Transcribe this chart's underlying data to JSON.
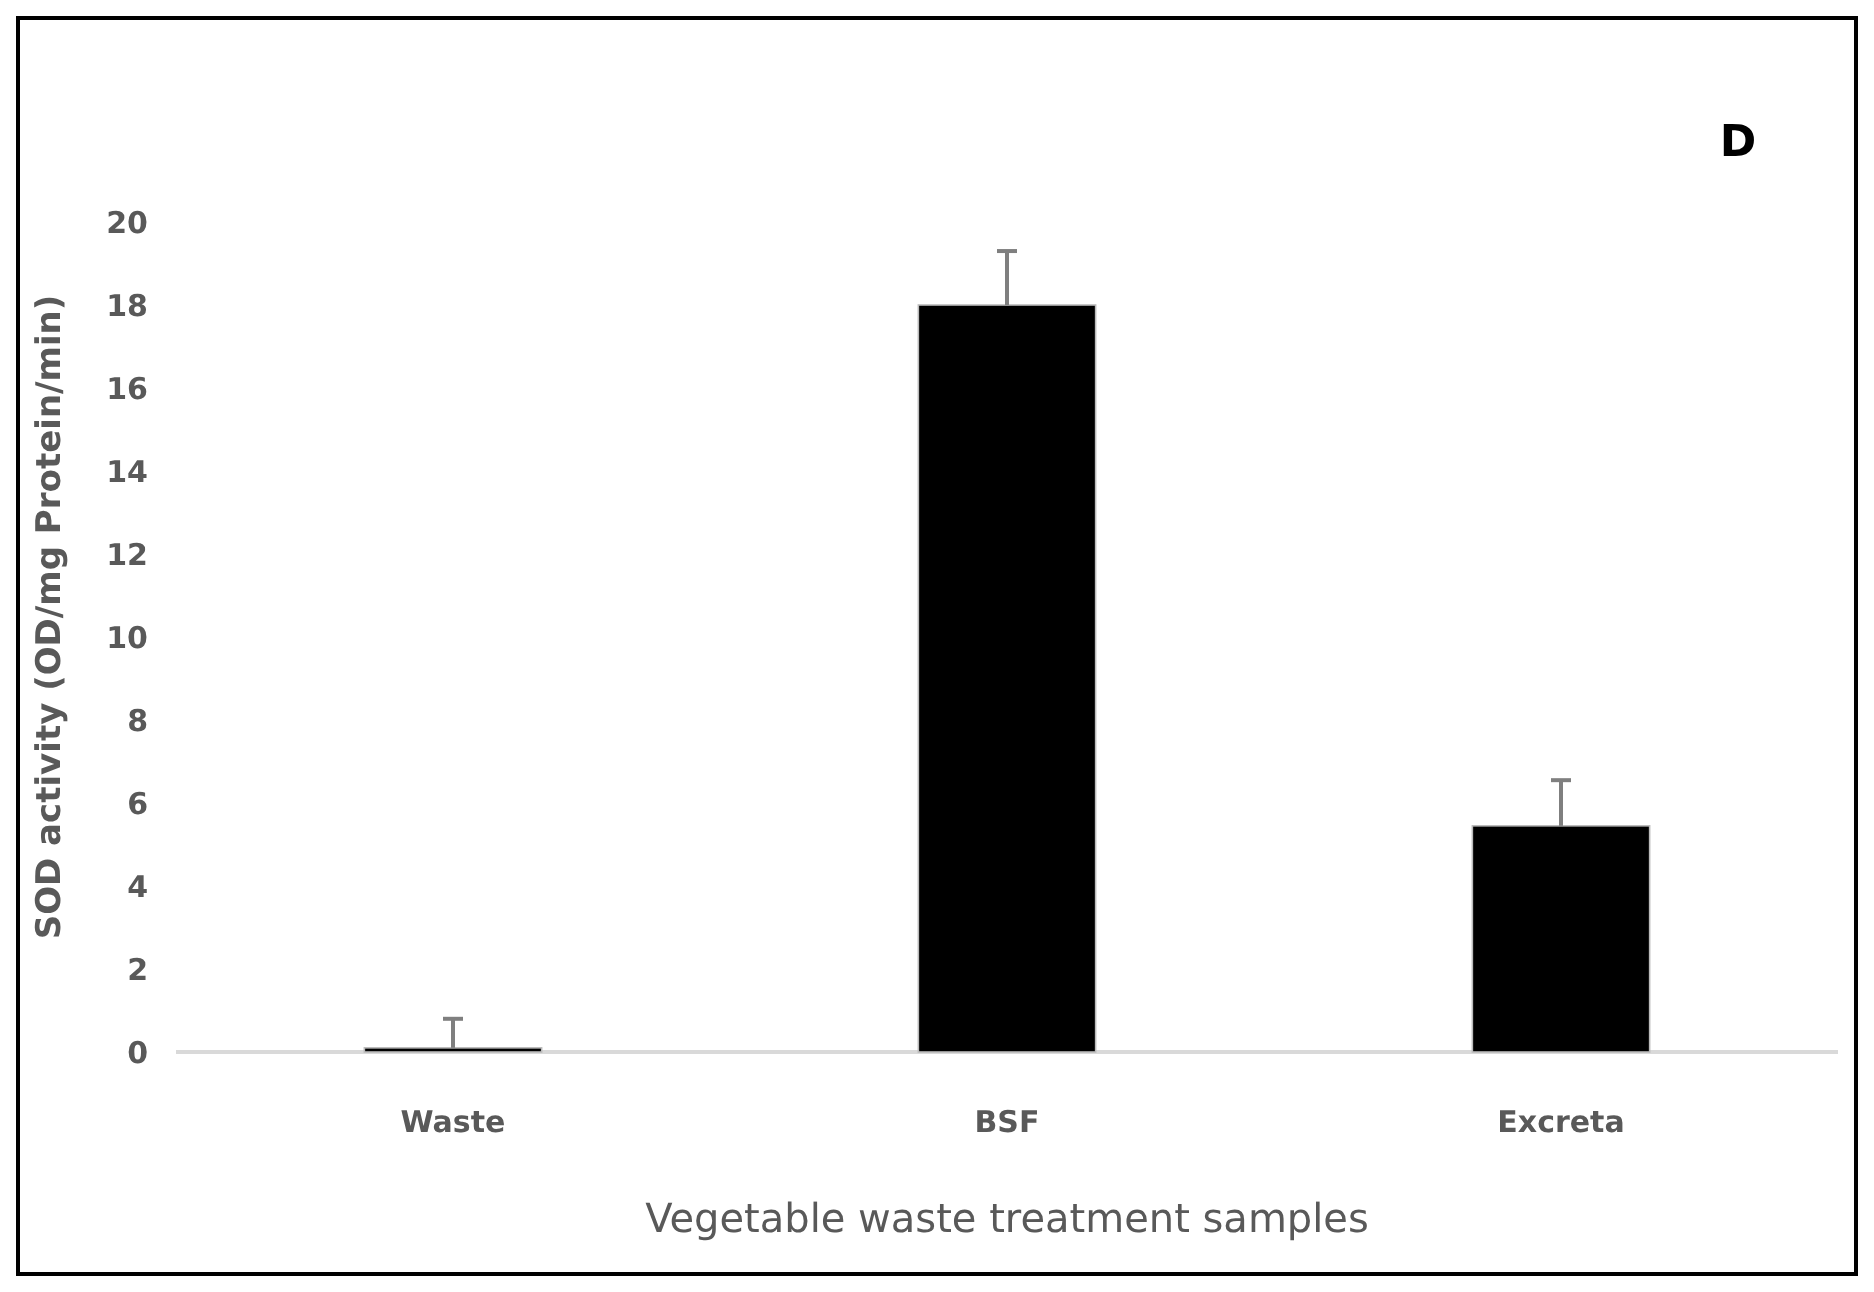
{
  "chart_data": {
    "type": "bar",
    "categories": [
      "Waste",
      "BSF",
      "Excreta"
    ],
    "values": [
      0.1,
      18,
      5.45
    ],
    "errors": [
      [
        0.1,
        0.8
      ],
      [
        18,
        19.3
      ],
      [
        5.45,
        6.55
      ]
    ],
    "color": "#000000",
    "xlabel": "Vegetable waste treatment samples",
    "ylabel": "SOD activity (OD/mg Protein/min)",
    "ylim": [
      0,
      20
    ],
    "yticks": [
      0,
      2,
      4,
      6,
      8,
      10,
      12,
      14,
      16,
      18,
      20
    ],
    "annotations": [
      "D"
    ],
    "grid": false
  }
}
